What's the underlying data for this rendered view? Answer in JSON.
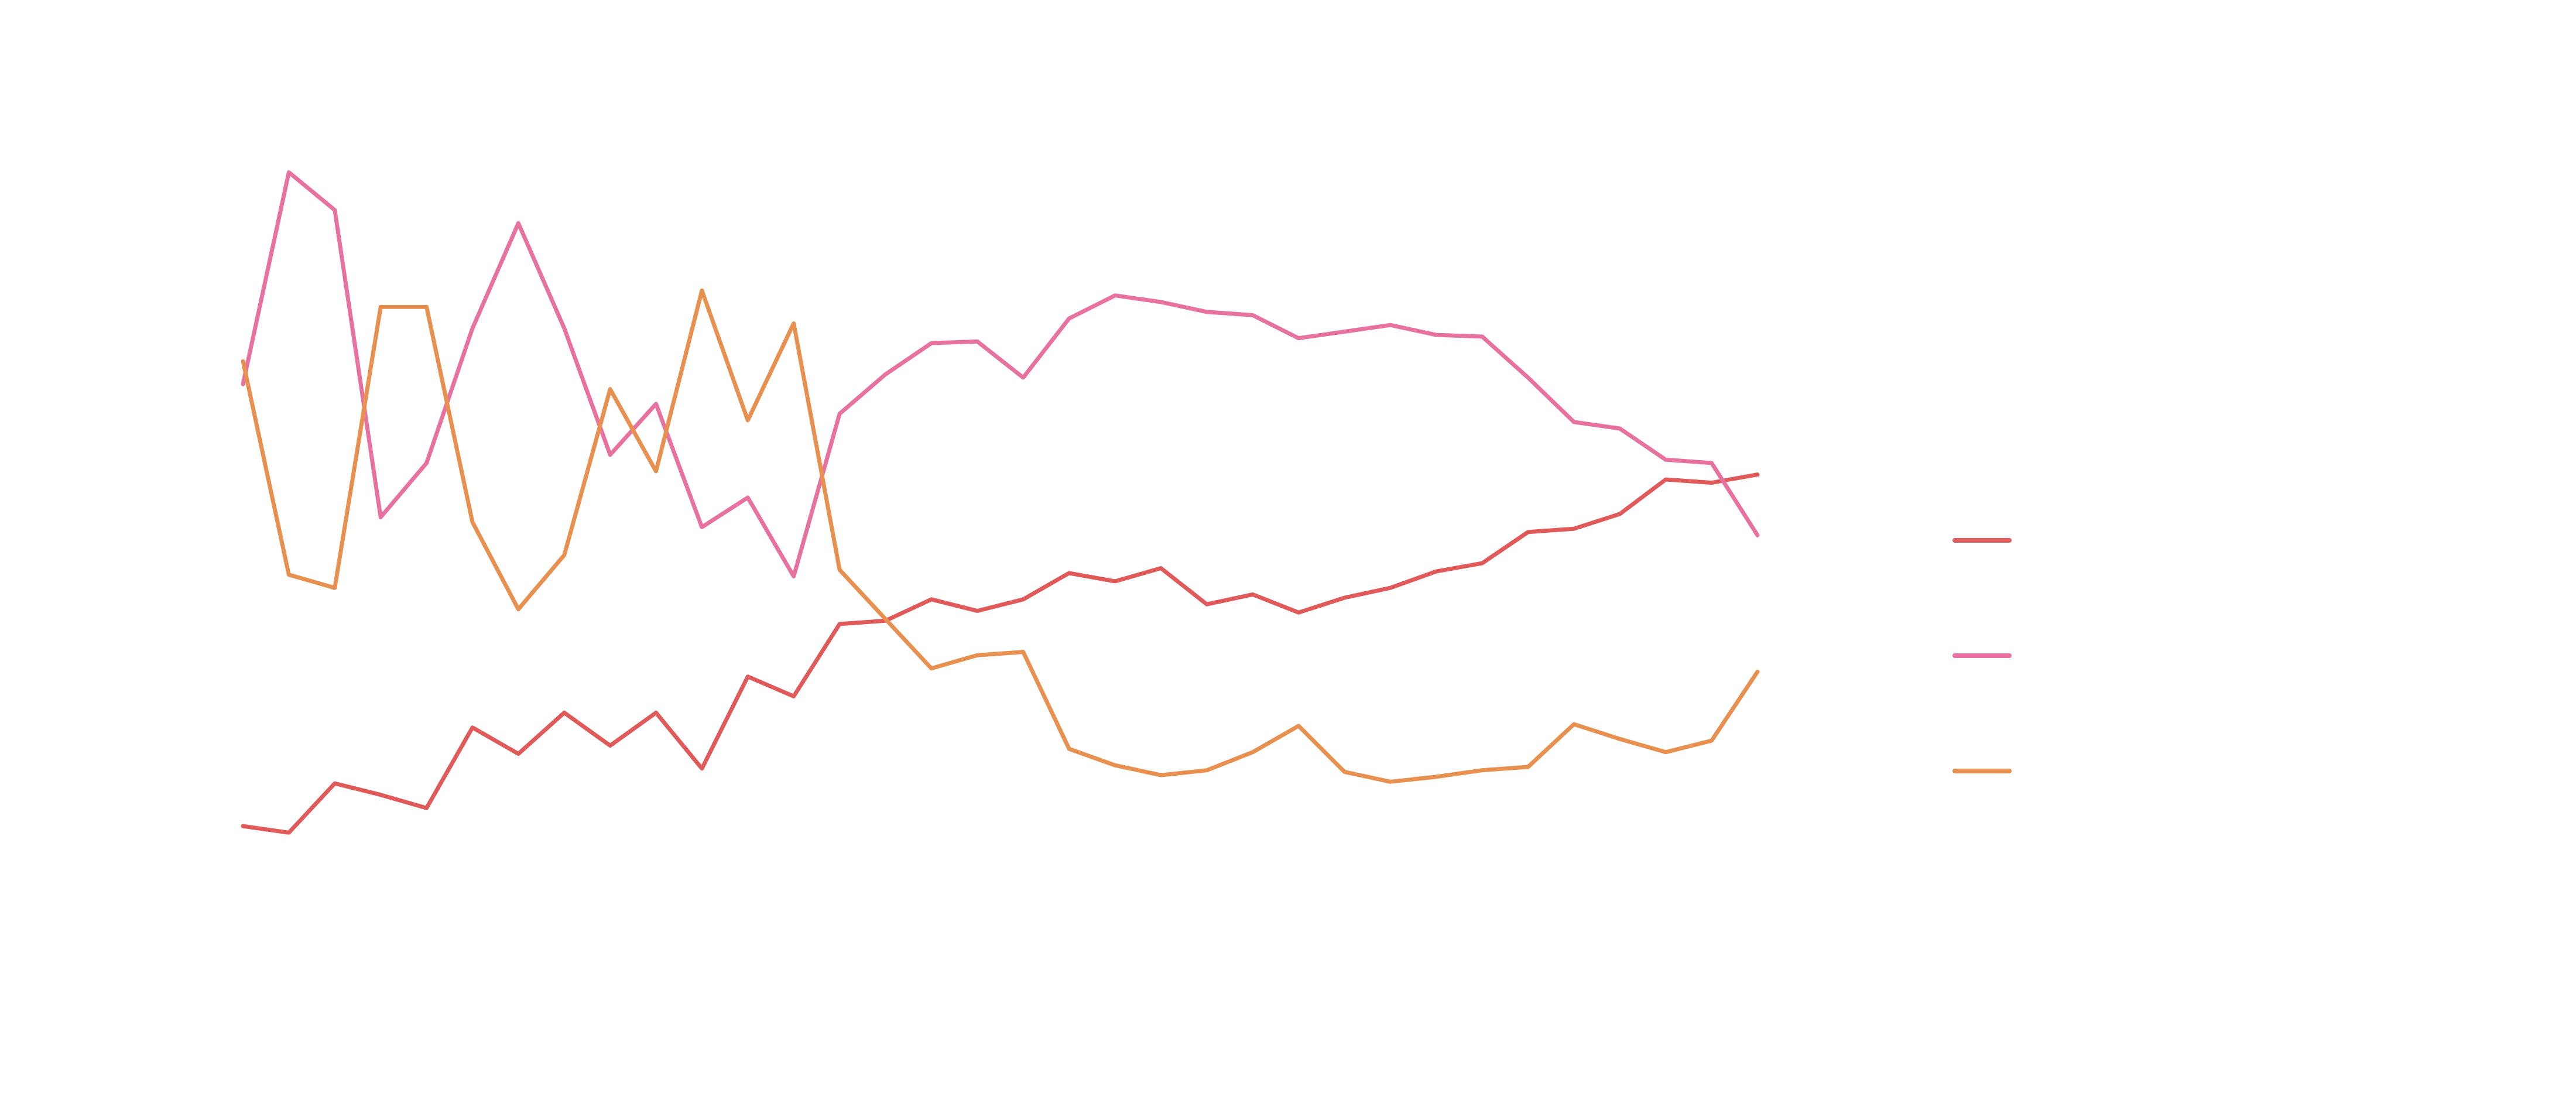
{
  "chart_data": {
    "type": "line",
    "categories": [
      null,
      null,
      null,
      null,
      null,
      null,
      null,
      null,
      null,
      null,
      null,
      null,
      null,
      null,
      null,
      null,
      null,
      null,
      null,
      null,
      null,
      null,
      null,
      null,
      null,
      null,
      null,
      null,
      null,
      null,
      null,
      null,
      null,
      null
    ],
    "ylim": [
      0,
      100
    ],
    "legend": "right",
    "series": [
      {
        "color": "#e05a5a",
        "values": [
          11.4,
          10.6,
          16.6,
          15.2,
          13.6,
          23.4,
          20.2,
          25.2,
          21.2,
          25.2,
          18.4,
          29.6,
          27.2,
          36,
          36.4,
          39,
          37.6,
          39,
          42.2,
          41.2,
          42.8,
          38.4,
          39.6,
          37.4,
          39.2,
          40.4,
          42.4,
          43.4,
          47.2,
          47.6,
          49.4,
          53.6,
          53.2,
          54.2
        ]
      },
      {
        "color": "#e8729f",
        "values": [
          65.2,
          91,
          86.4,
          49,
          55.6,
          72,
          84.8,
          72,
          56.6,
          62.8,
          47.8,
          51.4,
          41.8,
          61.6,
          66.4,
          70.2,
          70.4,
          66,
          73.2,
          76,
          75.2,
          74,
          73.6,
          70.8,
          71.6,
          72.4,
          71.2,
          71,
          66,
          60.6,
          59.8,
          56,
          55.6,
          46.8
        ]
      },
      {
        "color": "#e89050",
        "values": [
          68,
          42,
          40.4,
          74.6,
          74.6,
          48.4,
          37.8,
          44.4,
          64.6,
          54.6,
          76.6,
          60.8,
          72.6,
          42.6,
          36.6,
          30.6,
          32.2,
          32.6,
          20.8,
          18.8,
          17.6,
          18.2,
          20.4,
          23.6,
          18,
          16.8,
          17.4,
          18.2,
          18.6,
          23.8,
          22,
          20.4,
          21.8,
          30.2
        ]
      }
    ]
  }
}
